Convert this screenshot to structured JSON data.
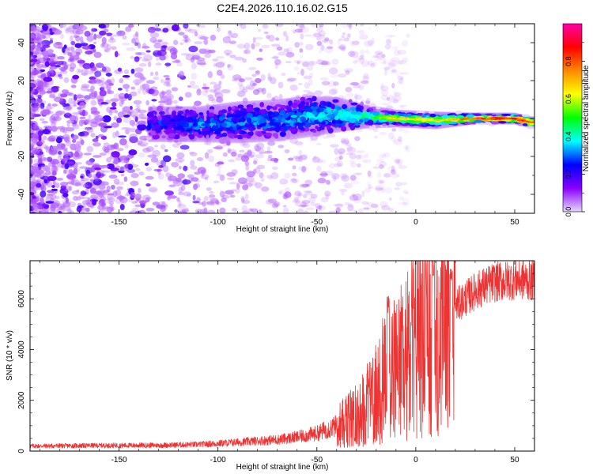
{
  "figure": {
    "title": "C2E4.2026.110.16.02.G15"
  },
  "chart_data": [
    {
      "type": "heatmap",
      "title": "C2E4.2026.110.16.02.G15",
      "xlabel": "Height of straight line (km)",
      "ylabel": "Frequency (Hz)",
      "xlim": [
        -195,
        60
      ],
      "ylim": [
        -50,
        50
      ],
      "x_ticks": [
        -150,
        -100,
        -50,
        0,
        50
      ],
      "y_ticks": [
        -40,
        -20,
        0,
        20,
        40
      ],
      "colorbar": {
        "label": "Normalized spectral amplitude",
        "range": [
          0,
          1
        ],
        "ticks": [
          0.0,
          0.2,
          0.4,
          0.6,
          0.8
        ],
        "tick_labels": [
          "0.0",
          "0.2",
          "0.4",
          "0.6",
          "0.8"
        ],
        "colormap": [
          "#e8d8ff",
          "#8800ff",
          "#0000ff",
          "#00ffff",
          "#00ff00",
          "#ffff00",
          "#ff8800",
          "#ff0000",
          "#ff00aa"
        ]
      },
      "signal_ridge": [
        {
          "x": -130,
          "freq": -3,
          "width": 6,
          "amp": 0.22
        },
        {
          "x": -110,
          "freq": -3,
          "width": 6,
          "amp": 0.3
        },
        {
          "x": -90,
          "freq": -2,
          "width": 7,
          "amp": 0.3
        },
        {
          "x": -70,
          "freq": -1,
          "width": 7,
          "amp": 0.32
        },
        {
          "x": -55,
          "freq": 1,
          "width": 7,
          "amp": 0.35
        },
        {
          "x": -40,
          "freq": 2,
          "width": 6,
          "amp": 0.4
        },
        {
          "x": -25,
          "freq": 1,
          "width": 4,
          "amp": 0.5
        },
        {
          "x": -10,
          "freq": 0,
          "width": 3,
          "amp": 0.7
        },
        {
          "x": 10,
          "freq": -1,
          "width": 3,
          "amp": 0.7
        },
        {
          "x": 30,
          "freq": 0,
          "width": 2,
          "amp": 0.85
        },
        {
          "x": 50,
          "freq": 0,
          "width": 2,
          "amp": 0.9
        },
        {
          "x": 58,
          "freq": -2,
          "width": 2,
          "amp": 0.9
        }
      ]
    },
    {
      "type": "line",
      "xlabel": "Height of straight line (km)",
      "ylabel": "SNR (10 * v/v)",
      "xlim": [
        -195,
        60
      ],
      "ylim": [
        0,
        7500
      ],
      "x_ticks": [
        -150,
        -100,
        -50,
        0,
        50
      ],
      "y_ticks": [
        0,
        2000,
        4000,
        6000
      ],
      "color": "#ee3333",
      "series": [
        {
          "x": [
            -195,
            -160,
            -130,
            -110,
            -100,
            -90,
            -80,
            -70,
            -60,
            -50,
            -45,
            -40,
            -35,
            -30,
            -25,
            -20,
            -15,
            -10,
            -5,
            0,
            5,
            10,
            15,
            20,
            25,
            30,
            35,
            40,
            45,
            50,
            55,
            60
          ],
          "y": [
            200,
            220,
            230,
            260,
            300,
            350,
            400,
            450,
            550,
            700,
            850,
            1000,
            1200,
            1400,
            1800,
            2300,
            2800,
            3200,
            3700,
            4300,
            4700,
            5100,
            5400,
            5700,
            6000,
            6300,
            6500,
            6650,
            6700,
            6750,
            6750,
            6700
          ]
        }
      ],
      "peaks": [
        {
          "x": -14,
          "y": 6100
        },
        {
          "x": 9,
          "y": 7500
        },
        {
          "x": 18,
          "y": 7200
        }
      ]
    }
  ]
}
